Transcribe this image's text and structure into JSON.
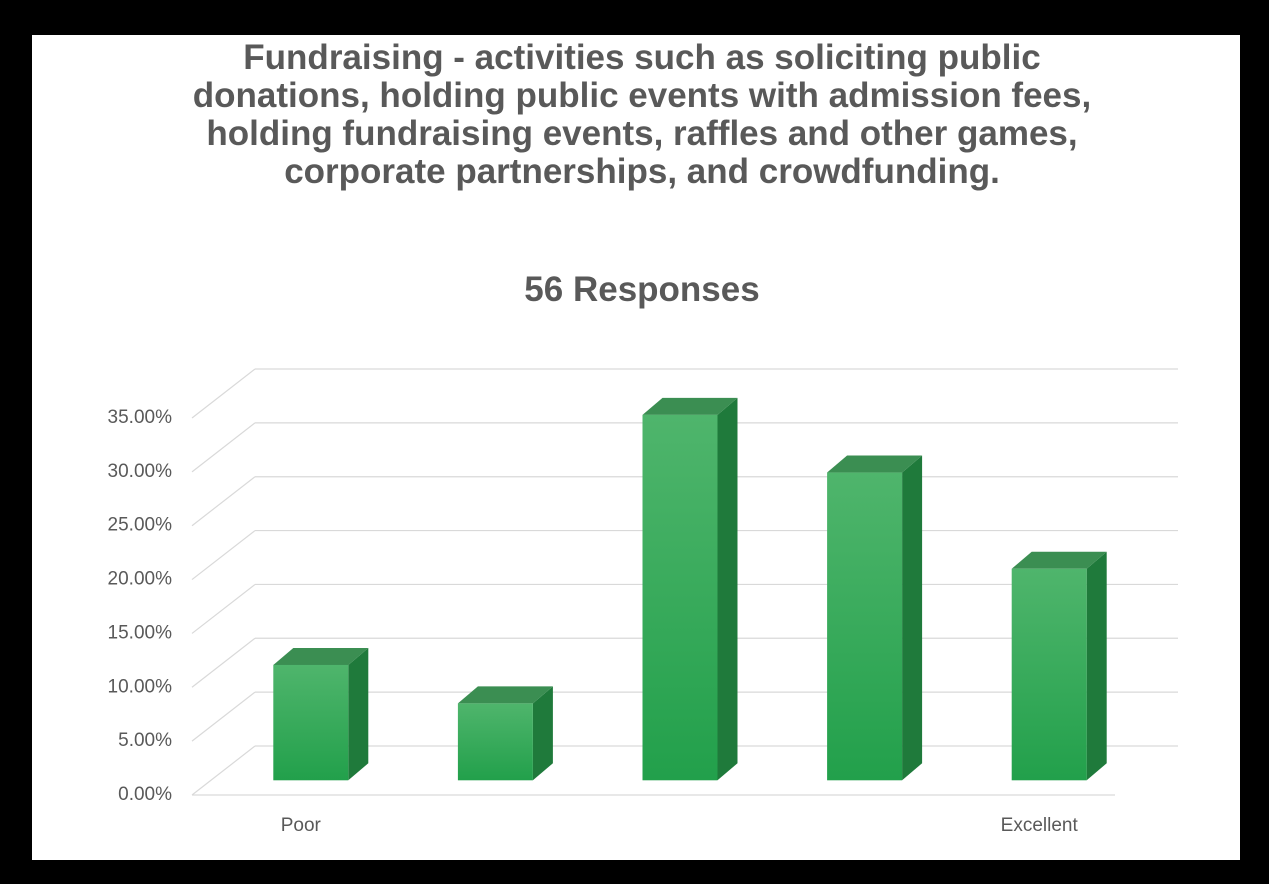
{
  "chart_data": {
    "type": "bar3d",
    "title": "Fundraising -  activities such as soliciting public donations, holding public events with admission fees, holding fundraising events, raffles and other games, corporate partnerships, and crowdfunding.",
    "subtitle": "56 Responses",
    "categories": [
      "Poor",
      null,
      null,
      null,
      "Excellent"
    ],
    "values": [
      10.71,
      7.14,
      33.93,
      28.57,
      19.64
    ],
    "color": "#2eaa52",
    "ylim": [
      0,
      35
    ],
    "yticks": [
      {
        "value": 0,
        "label": "0.00%"
      },
      {
        "value": 5,
        "label": "5.00%"
      },
      {
        "value": 10,
        "label": "10.00%"
      },
      {
        "value": 15,
        "label": "15.00%"
      },
      {
        "value": 20,
        "label": "20.00%"
      },
      {
        "value": 25,
        "label": "25.00%"
      },
      {
        "value": 30,
        "label": "30.00%"
      },
      {
        "value": 35,
        "label": "35.00%"
      }
    ],
    "grid": true
  }
}
